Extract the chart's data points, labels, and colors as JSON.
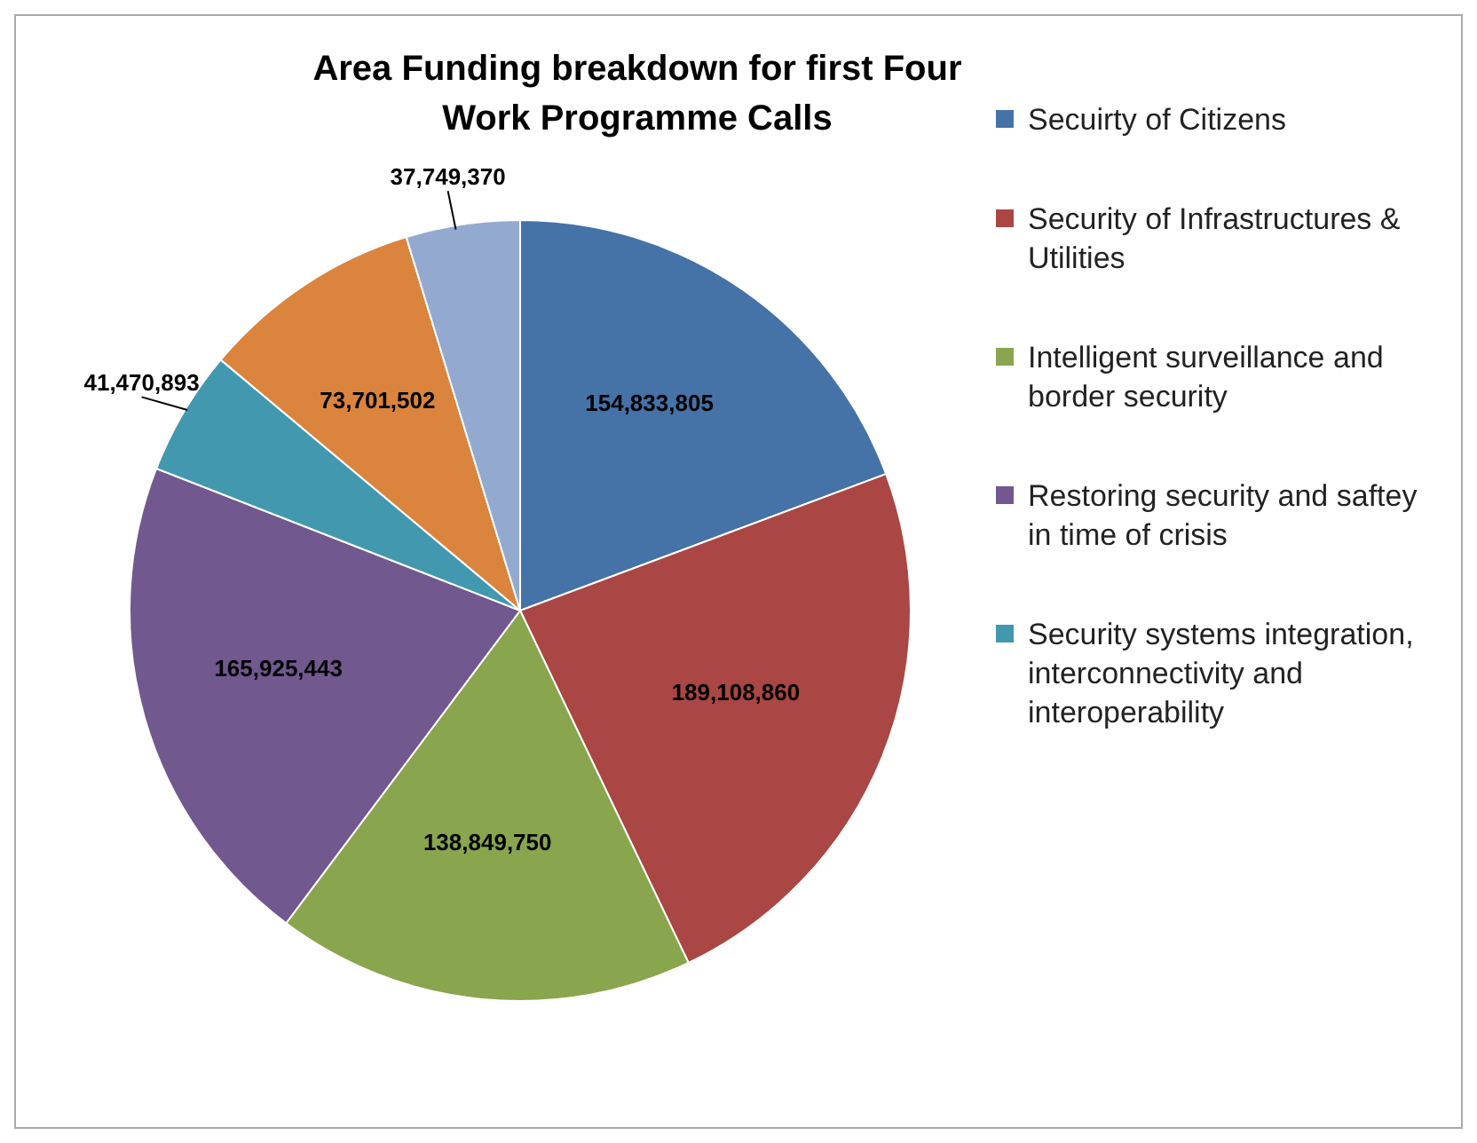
{
  "chart_data": {
    "type": "pie",
    "title": "Area Funding breakdown for first Four Work Programme Calls",
    "categories": [
      "Secuirty of Citizens",
      "Security of Infrastructures & Utilities",
      "Intelligent surveillance and border security",
      "Restoring security and saftey in time of crisis",
      "Security systems integration, interconnectivity and interoperability",
      null,
      null
    ],
    "values": [
      154833805,
      189108860,
      138849750,
      165925443,
      41470893,
      73701502,
      37749370
    ],
    "colors": [
      "#4572a7",
      "#aa4643",
      "#89a54e",
      "#71588f",
      "#4198af",
      "#db843d",
      "#93a9cf"
    ],
    "value_labels": [
      "154,833,805",
      "189,108,860",
      "138,849,750",
      "165,925,443",
      "41,470,893",
      "73,701,502",
      "37,749,370"
    ],
    "legend": "right"
  }
}
